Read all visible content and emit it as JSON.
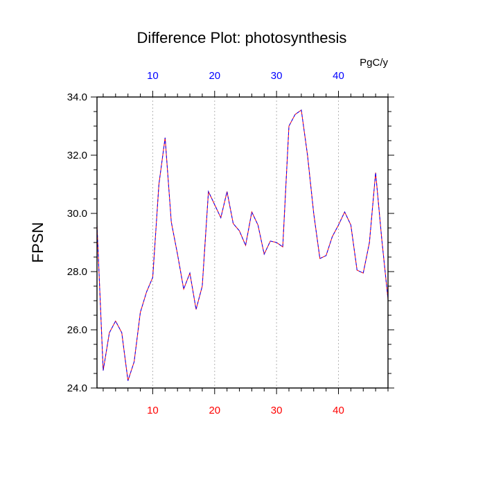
{
  "chart_data": {
    "type": "line",
    "title": "Difference Plot: photosynthesis",
    "ylabel": "FPSN",
    "xlabel": "",
    "top_axis_unit": "PgC/y",
    "xlim": [
      1,
      48
    ],
    "ylim": [
      24,
      34
    ],
    "x_ticks": [
      10,
      20,
      30,
      40
    ],
    "y_ticks": [
      "24.0",
      "26.0",
      "28.0",
      "30.0",
      "32.0",
      "34.0"
    ],
    "x_tick_labels_bottom": [
      "10",
      "20",
      "30",
      "40"
    ],
    "x_tick_labels_top": [
      "10",
      "20",
      "30",
      "40"
    ],
    "grid": "vertical dotted at major x ticks",
    "colors": {
      "bottom_tick_labels": "#ff0000",
      "top_tick_labels": "#0000ff",
      "series_dash_a": "#0000ff",
      "series_dash_b": "#ff0000"
    },
    "x": [
      1,
      2,
      3,
      4,
      5,
      6,
      7,
      8,
      9,
      10,
      11,
      12,
      13,
      14,
      15,
      16,
      17,
      18,
      19,
      20,
      21,
      22,
      23,
      24,
      25,
      26,
      27,
      28,
      29,
      30,
      31,
      32,
      33,
      34,
      35,
      36,
      37,
      38,
      39,
      40,
      41,
      42,
      43,
      44,
      45,
      46,
      47,
      48
    ],
    "series": [
      {
        "values": [
          29.6,
          24.6,
          25.9,
          26.3,
          25.9,
          24.25,
          24.9,
          26.6,
          27.3,
          27.8,
          31.0,
          32.6,
          29.7,
          28.6,
          27.4,
          27.95,
          26.7,
          27.5,
          30.75,
          30.3,
          29.85,
          30.75,
          29.65,
          29.4,
          28.9,
          30.05,
          29.6,
          28.6,
          29.05,
          29.0,
          28.85,
          33.0,
          33.4,
          33.55,
          32.0,
          30.0,
          28.45,
          28.55,
          29.2,
          29.6,
          30.05,
          29.6,
          28.05,
          27.95,
          29.0,
          31.4,
          29.1,
          27.05
        ]
      }
    ]
  }
}
